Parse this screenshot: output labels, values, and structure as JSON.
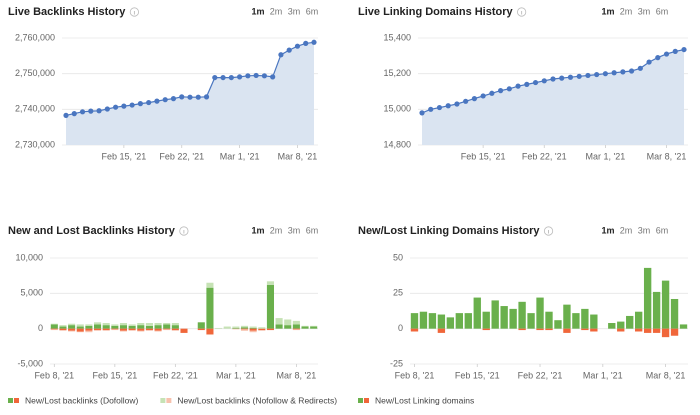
{
  "chart_data": [
    {
      "type": "line",
      "title": "Live Backlinks History",
      "periods": [
        "1m",
        "2m",
        "3m",
        "6m"
      ],
      "selected_period": "1m",
      "area": true,
      "color": "#4a76c0",
      "area_color": "#dae4f1",
      "grid": true,
      "x": [
        "2021-02-08",
        "2021-02-09",
        "2021-02-10",
        "2021-02-11",
        "2021-02-12",
        "2021-02-13",
        "2021-02-14",
        "2021-02-15",
        "2021-02-16",
        "2021-02-17",
        "2021-02-18",
        "2021-02-19",
        "2021-02-20",
        "2021-02-21",
        "2021-02-22",
        "2021-02-23",
        "2021-02-24",
        "2021-02-25",
        "2021-02-26",
        "2021-02-27",
        "2021-02-28",
        "2021-03-01",
        "2021-03-02",
        "2021-03-03",
        "2021-03-04",
        "2021-03-05",
        "2021-03-06",
        "2021-03-07",
        "2021-03-08",
        "2021-03-09",
        "2021-03-10"
      ],
      "values": [
        2738300,
        2738800,
        2739300,
        2739500,
        2739600,
        2740100,
        2740600,
        2740900,
        2741200,
        2741600,
        2741900,
        2742300,
        2742700,
        2743000,
        2743500,
        2743400,
        2743400,
        2743500,
        2748900,
        2748900,
        2748900,
        2749100,
        2749400,
        2749500,
        2749400,
        2749100,
        2755300,
        2756600,
        2757700,
        2758500,
        2758800
      ],
      "ylim": [
        2730000,
        2760000
      ],
      "yticks": [
        {
          "value": 2730000,
          "label": "2,730,000"
        },
        {
          "value": 2740000,
          "label": "2,740,000"
        },
        {
          "value": 2750000,
          "label": "2,750,000"
        },
        {
          "value": 2760000,
          "label": "2,760,000"
        }
      ],
      "xticks": [
        {
          "value": "2021-02-15",
          "label": "Feb 15, '21"
        },
        {
          "value": "2021-02-22",
          "label": "Feb 22, '21"
        },
        {
          "value": "2021-03-01",
          "label": "Mar 1, '21"
        },
        {
          "value": "2021-03-08",
          "label": "Mar 8, '21"
        }
      ]
    },
    {
      "type": "line",
      "title": "Live Linking Domains History",
      "periods": [
        "1m",
        "2m",
        "3m",
        "6m"
      ],
      "selected_period": "1m",
      "area": true,
      "color": "#4a76c0",
      "area_color": "#dae4f1",
      "grid": true,
      "x": [
        "2021-02-08",
        "2021-02-09",
        "2021-02-10",
        "2021-02-11",
        "2021-02-12",
        "2021-02-13",
        "2021-02-14",
        "2021-02-15",
        "2021-02-16",
        "2021-02-17",
        "2021-02-18",
        "2021-02-19",
        "2021-02-20",
        "2021-02-21",
        "2021-02-22",
        "2021-02-23",
        "2021-02-24",
        "2021-02-25",
        "2021-02-26",
        "2021-02-27",
        "2021-02-28",
        "2021-03-01",
        "2021-03-02",
        "2021-03-03",
        "2021-03-04",
        "2021-03-05",
        "2021-03-06",
        "2021-03-07",
        "2021-03-08",
        "2021-03-09",
        "2021-03-10"
      ],
      "values": [
        14980,
        15000,
        15010,
        15020,
        15030,
        15045,
        15060,
        15075,
        15090,
        15105,
        15115,
        15130,
        15140,
        15150,
        15160,
        15170,
        15175,
        15180,
        15185,
        15190,
        15195,
        15200,
        15205,
        15210,
        15215,
        15230,
        15265,
        15290,
        15310,
        15325,
        15335
      ],
      "ylim": [
        14800,
        15400
      ],
      "yticks": [
        {
          "value": 14800,
          "label": "14,800"
        },
        {
          "value": 15000,
          "label": "15,000"
        },
        {
          "value": 15200,
          "label": "15,200"
        },
        {
          "value": 15400,
          "label": "15,400"
        }
      ],
      "xticks": [
        {
          "value": "2021-02-15",
          "label": "Feb 15, '21"
        },
        {
          "value": "2021-02-22",
          "label": "Feb 22, '21"
        },
        {
          "value": "2021-03-01",
          "label": "Mar 1, '21"
        },
        {
          "value": "2021-03-08",
          "label": "Mar 8, '21"
        }
      ]
    },
    {
      "type": "bar",
      "title": "New and Lost Backlinks History",
      "periods": [
        "1m",
        "2m",
        "3m",
        "6m"
      ],
      "selected_period": "1m",
      "grid": true,
      "x": [
        "2021-02-08",
        "2021-02-09",
        "2021-02-10",
        "2021-02-11",
        "2021-02-12",
        "2021-02-13",
        "2021-02-14",
        "2021-02-15",
        "2021-02-16",
        "2021-02-17",
        "2021-02-18",
        "2021-02-19",
        "2021-02-20",
        "2021-02-21",
        "2021-02-22",
        "2021-02-23",
        "2021-02-24",
        "2021-02-25",
        "2021-02-26",
        "2021-02-27",
        "2021-02-28",
        "2021-03-01",
        "2021-03-02",
        "2021-03-03",
        "2021-03-04",
        "2021-03-05",
        "2021-03-06",
        "2021-03-07",
        "2021-03-08",
        "2021-03-09",
        "2021-03-10"
      ],
      "series": [
        {
          "name": "New/Lost backlinks (Dofollow)",
          "color": "#6ab04c",
          "lost_color": "#f0663a",
          "values": [
            600,
            300,
            500,
            300,
            400,
            600,
            500,
            400,
            500,
            400,
            500,
            400,
            500,
            600,
            500,
            0,
            0,
            900,
            5800,
            0,
            0,
            100,
            200,
            100,
            0,
            6200,
            600,
            500,
            600,
            300,
            300
          ],
          "lost_values": [
            -100,
            -200,
            -300,
            -400,
            -300,
            -200,
            -200,
            -100,
            -300,
            -200,
            -300,
            -200,
            -300,
            -100,
            -200,
            -600,
            0,
            -200,
            -800,
            0,
            0,
            0,
            -100,
            -300,
            -200,
            -200,
            0,
            0,
            -100,
            0,
            0
          ]
        },
        {
          "name": "New/Lost backlinks (Nofollow & Redirects)",
          "color": "#c6e2b5",
          "lost_color": "#f7c1ad",
          "values": [
            100,
            200,
            200,
            300,
            200,
            300,
            300,
            200,
            300,
            200,
            300,
            400,
            300,
            200,
            300,
            0,
            0,
            0,
            700,
            100,
            300,
            200,
            200,
            200,
            200,
            500,
            900,
            800,
            500,
            100,
            100
          ],
          "lost_values": [
            -100,
            -100,
            -100,
            -100,
            -200,
            -100,
            -100,
            -100,
            -100,
            -100,
            -100,
            -100,
            -100,
            -100,
            -100,
            0,
            0,
            0,
            -100,
            0,
            0,
            -100,
            -200,
            -200,
            -100,
            0,
            0,
            0,
            -100,
            0,
            0
          ]
        }
      ],
      "ylim": [
        -5000,
        10000
      ],
      "yticks": [
        {
          "value": -5000,
          "label": "-5,000"
        },
        0,
        {
          "value": 5000,
          "label": "5,000"
        },
        {
          "value": 10000,
          "label": "10,000"
        }
      ],
      "xticks": [
        {
          "value": "2021-02-08",
          "label": "Feb 8, '21"
        },
        {
          "value": "2021-02-15",
          "label": "Feb 15, '21"
        },
        {
          "value": "2021-02-22",
          "label": "Feb 22, '21"
        },
        {
          "value": "2021-03-01",
          "label": "Mar 1, '21"
        },
        {
          "value": "2021-03-08",
          "label": "Mar 8, '21"
        }
      ]
    },
    {
      "type": "bar",
      "title": "New/Lost Linking Domains History",
      "periods": [
        "1m",
        "2m",
        "3m",
        "6m"
      ],
      "selected_period": "1m",
      "grid": true,
      "x": [
        "2021-02-08",
        "2021-02-09",
        "2021-02-10",
        "2021-02-11",
        "2021-02-12",
        "2021-02-13",
        "2021-02-14",
        "2021-02-15",
        "2021-02-16",
        "2021-02-17",
        "2021-02-18",
        "2021-02-19",
        "2021-02-20",
        "2021-02-21",
        "2021-02-22",
        "2021-02-23",
        "2021-02-24",
        "2021-02-25",
        "2021-02-26",
        "2021-02-27",
        "2021-02-28",
        "2021-03-01",
        "2021-03-02",
        "2021-03-03",
        "2021-03-04",
        "2021-03-05",
        "2021-03-06",
        "2021-03-07",
        "2021-03-08",
        "2021-03-09",
        "2021-03-10"
      ],
      "series": [
        {
          "name": "New/Lost Linking domains",
          "color": "#6ab04c",
          "lost_color": "#f0663a",
          "values": [
            11,
            12,
            11,
            10,
            8,
            11,
            11,
            22,
            12,
            20,
            16,
            14,
            19,
            11,
            22,
            12,
            6,
            17,
            11,
            14,
            10,
            0,
            4,
            5,
            9,
            12,
            43,
            26,
            34,
            21,
            3
          ],
          "lost_values": [
            -2,
            0,
            0,
            -3,
            0,
            0,
            0,
            0,
            -1,
            0,
            0,
            0,
            -1,
            0,
            -1,
            -1,
            0,
            -3,
            0,
            -1,
            -2,
            0,
            0,
            -2,
            0,
            -2,
            -3,
            -3,
            -6,
            -5,
            0
          ]
        }
      ],
      "ylim": [
        -25,
        50
      ],
      "yticks": [
        -25,
        0,
        25,
        50
      ],
      "xticks": [
        {
          "value": "2021-02-08",
          "label": "Feb 8, '21"
        },
        {
          "value": "2021-02-15",
          "label": "Feb 15, '21"
        },
        {
          "value": "2021-02-22",
          "label": "Feb 22, '21"
        },
        {
          "value": "2021-03-01",
          "label": "Mar 1, '21"
        },
        {
          "value": "2021-03-08",
          "label": "Mar 8, '21"
        }
      ]
    }
  ]
}
